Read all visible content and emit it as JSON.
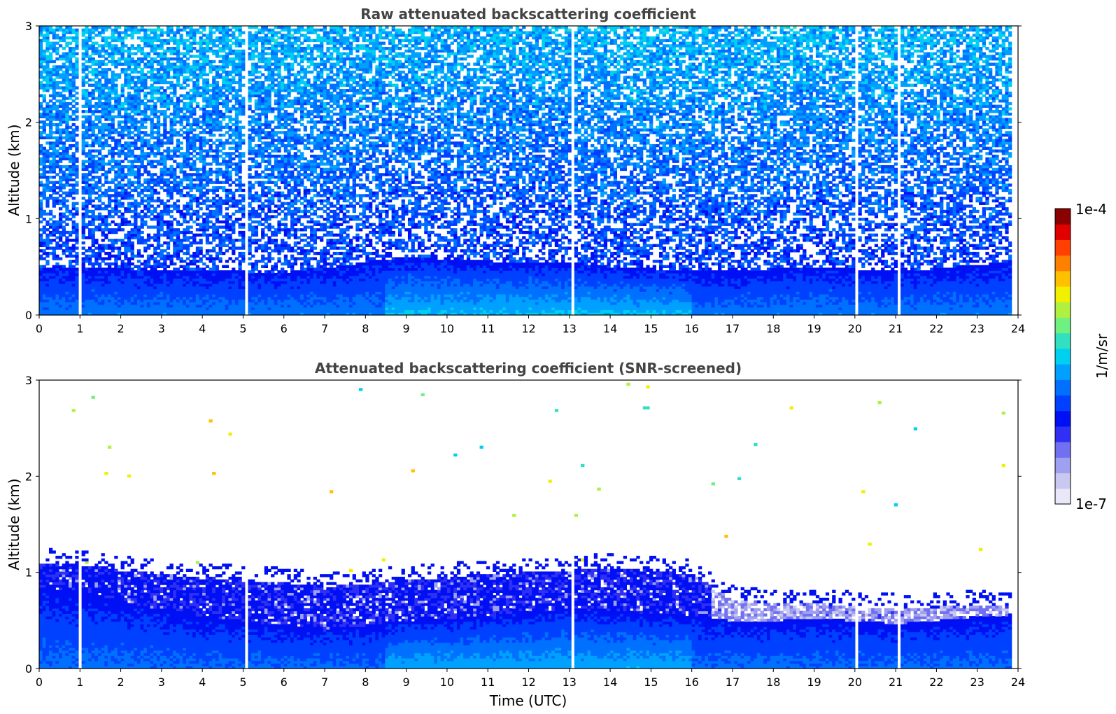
{
  "chart_data": [
    {
      "type": "heatmap",
      "title": "Raw attenuated backscattering coefficient",
      "xlabel": "",
      "ylabel": "Altitude (km)",
      "xlim": [
        0,
        24
      ],
      "ylim": [
        0,
        3
      ],
      "xticks": [
        "0",
        "1",
        "2",
        "3",
        "4",
        "5",
        "6",
        "7",
        "8",
        "9",
        "10",
        "11",
        "12",
        "13",
        "14",
        "15",
        "16",
        "17",
        "18",
        "19",
        "20",
        "21",
        "22",
        "23",
        "24"
      ],
      "yticks": [
        "0",
        "1",
        "2",
        "3"
      ],
      "gaps_hours": [
        1.0,
        5.05,
        13.05,
        20.05,
        21.05
      ],
      "data_end_hour": 23.8,
      "boundary_layer_top_km": {
        "x": [
          0,
          1,
          2,
          3,
          4,
          5,
          6,
          7,
          8,
          9,
          10,
          11,
          12,
          13,
          14,
          15,
          16,
          17,
          18,
          19,
          20,
          21,
          22,
          23,
          23.8
        ],
        "y": [
          0.5,
          0.5,
          0.48,
          0.47,
          0.46,
          0.45,
          0.44,
          0.48,
          0.55,
          0.6,
          0.58,
          0.56,
          0.55,
          0.55,
          0.5,
          0.48,
          0.45,
          0.45,
          0.48,
          0.5,
          0.48,
          0.45,
          0.48,
          0.52,
          0.55
        ]
      },
      "regime": "raw"
    },
    {
      "type": "heatmap",
      "title": "Attenuated backscattering coefficient (SNR-screened)",
      "xlabel": "Time (UTC)",
      "ylabel": "Altitude (km)",
      "xlim": [
        0,
        24
      ],
      "ylim": [
        0,
        3
      ],
      "xticks": [
        "0",
        "1",
        "2",
        "3",
        "4",
        "5",
        "6",
        "7",
        "8",
        "9",
        "10",
        "11",
        "12",
        "13",
        "14",
        "15",
        "16",
        "17",
        "18",
        "19",
        "20",
        "21",
        "22",
        "23",
        "24"
      ],
      "yticks": [
        "0",
        "1",
        "2",
        "3"
      ],
      "gaps_hours": [
        1.0,
        5.05,
        13.05,
        20.05,
        21.05
      ],
      "data_end_hour": 23.8,
      "residual_layer_top_km": {
        "x": [
          0,
          1,
          2,
          3,
          4,
          5,
          6,
          7,
          8,
          9,
          10,
          11,
          12,
          13,
          14,
          15,
          16,
          16.5,
          17,
          18,
          19,
          20,
          21,
          22,
          23,
          23.8
        ],
        "y": [
          1.1,
          1.08,
          1.02,
          0.98,
          0.95,
          0.92,
          0.9,
          0.85,
          0.88,
          0.92,
          0.95,
          0.98,
          1.0,
          1.02,
          1.05,
          1.02,
          0.98,
          0.85,
          0.72,
          0.68,
          0.68,
          0.65,
          0.63,
          0.64,
          0.66,
          0.65
        ]
      },
      "boundary_layer_top_km": {
        "x": [
          0,
          1,
          2,
          3,
          4,
          5,
          6,
          7,
          8,
          9,
          10,
          11,
          12,
          13,
          14,
          15,
          16,
          17,
          18,
          19,
          20,
          21,
          22,
          23,
          23.8
        ],
        "y": [
          0.85,
          0.8,
          0.7,
          0.62,
          0.55,
          0.5,
          0.45,
          0.42,
          0.45,
          0.5,
          0.52,
          0.55,
          0.6,
          0.62,
          0.6,
          0.58,
          0.55,
          0.5,
          0.5,
          0.52,
          0.5,
          0.47,
          0.5,
          0.54,
          0.56
        ]
      },
      "regime": "screened"
    }
  ],
  "colorbar": {
    "label": "1/m/sr",
    "max_label": "1e-4",
    "min_label": "1e-7",
    "log_min": -7,
    "log_max": -4,
    "colors": [
      "#e8e8f8",
      "#c8c8f0",
      "#a0a0f0",
      "#7070f0",
      "#3030f5",
      "#0010f5",
      "#0040ff",
      "#0070ff",
      "#00a0ff",
      "#00d0f0",
      "#30e0c0",
      "#70f080",
      "#b0f040",
      "#f0f000",
      "#ffc000",
      "#ff8000",
      "#ff4000",
      "#e00000",
      "#8b0000"
    ]
  }
}
